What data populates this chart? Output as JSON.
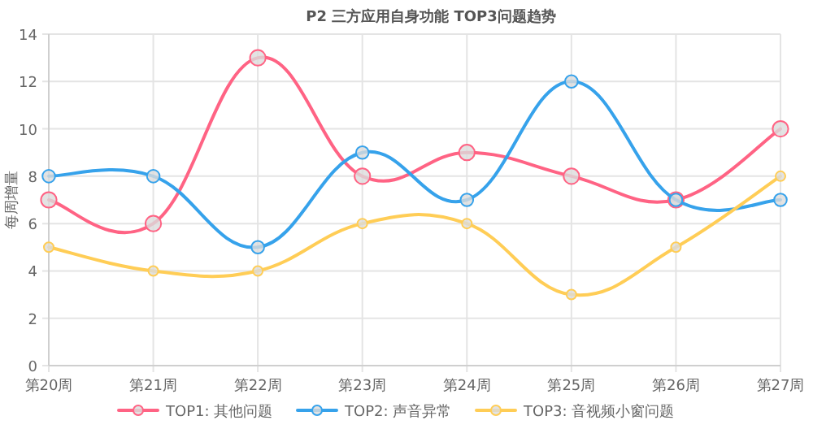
{
  "chart_data": {
    "type": "line",
    "title": "P2 三方应用自身功能 TOP3问题趋势",
    "ylabel": "每周增量",
    "categories": [
      "第20周",
      "第21周",
      "第22周",
      "第23周",
      "第24周",
      "第25周",
      "第26周",
      "第27周"
    ],
    "series": [
      {
        "name": "TOP1: 其他问题",
        "color": "#ff6384",
        "values": [
          7,
          6,
          13,
          8,
          9,
          8,
          7,
          10
        ]
      },
      {
        "name": "TOP2: 声音异常",
        "color": "#36a2eb",
        "values": [
          8,
          8,
          5,
          9,
          7,
          12,
          7,
          7
        ]
      },
      {
        "name": "TOP3: 音视频小窗问题",
        "color": "#ffcd56",
        "values": [
          5,
          4,
          4,
          6,
          6,
          3,
          5,
          8
        ]
      }
    ],
    "ylim": [
      0,
      14
    ],
    "yticks": [
      0,
      2,
      4,
      6,
      8,
      10,
      12,
      14
    ],
    "grid": true,
    "legend": "bottom",
    "marker": "circle",
    "line_style": "solid"
  }
}
